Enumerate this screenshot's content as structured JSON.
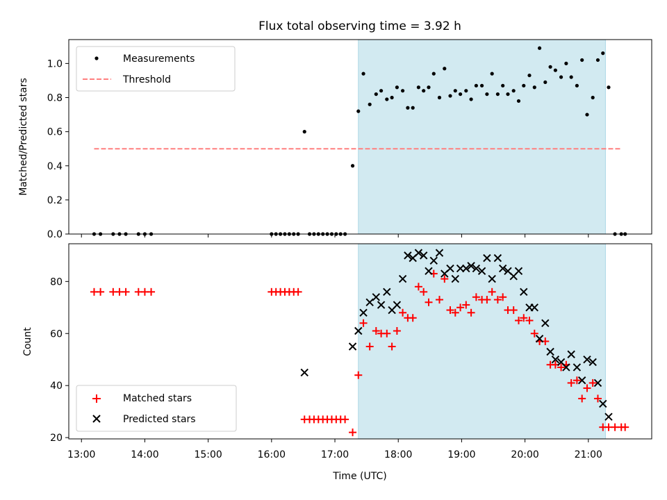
{
  "figure": {
    "title": "Flux total observing time = 3.92 h",
    "xlabel": "Time (UTC)"
  },
  "colors": {
    "shade": "#add8e6",
    "matched": "#ff0000",
    "predicted": "#000000",
    "threshold": "#ff7f7f",
    "measurement": "#000000"
  },
  "chart_data": [
    {
      "type": "scatter",
      "title": "Flux total observing time = 3.92 h",
      "xlabel": "",
      "ylabel": "Matched/Predicted stars",
      "x_unit": "hours UTC",
      "xlim": [
        12.8,
        22.0
      ],
      "ylim": [
        0,
        1.14
      ],
      "yticks": [
        0.0,
        0.2,
        0.4,
        0.6,
        0.8,
        1.0
      ],
      "ytick_labels": [
        "0.0",
        "0.2",
        "0.4",
        "0.6",
        "0.8",
        "1.0"
      ],
      "shaded_interval": [
        17.37,
        21.27
      ],
      "legend": {
        "placement": "upper left",
        "entries": [
          "Measurements",
          "Threshold"
        ]
      },
      "series": [
        {
          "name": "Measurements",
          "marker": "dot",
          "x": [
            13.2,
            13.3,
            13.5,
            13.6,
            13.7,
            13.9,
            14.0,
            14.1,
            16.0,
            16.07,
            16.14,
            16.21,
            16.28,
            16.35,
            16.42,
            16.52,
            16.6,
            16.67,
            16.74,
            16.81,
            16.88,
            16.95,
            17.02,
            17.09,
            17.16,
            17.28,
            17.37,
            17.45,
            17.55,
            17.65,
            17.73,
            17.82,
            17.9,
            17.98,
            18.07,
            18.15,
            18.23,
            18.32,
            18.4,
            18.48,
            18.56,
            18.65,
            18.73,
            18.82,
            18.9,
            18.98,
            19.07,
            19.15,
            19.23,
            19.32,
            19.4,
            19.48,
            19.57,
            19.65,
            19.73,
            19.82,
            19.9,
            19.98,
            20.07,
            20.15,
            20.23,
            20.32,
            20.4,
            20.48,
            20.57,
            20.65,
            20.73,
            20.82,
            20.9,
            20.98,
            21.07,
            21.15,
            21.23,
            21.32,
            21.42,
            21.52,
            21.58
          ],
          "y": [
            0,
            0,
            0,
            0,
            0,
            0,
            0,
            0,
            0,
            0,
            0,
            0,
            0,
            0,
            0,
            0.6,
            0,
            0,
            0,
            0,
            0,
            0,
            0,
            0,
            0,
            0.4,
            0.72,
            0.94,
            0.76,
            0.82,
            0.84,
            0.79,
            0.8,
            0.86,
            0.84,
            0.74,
            0.74,
            0.86,
            0.84,
            0.86,
            0.94,
            0.8,
            0.97,
            0.81,
            0.84,
            0.82,
            0.84,
            0.79,
            0.87,
            0.87,
            0.82,
            0.94,
            0.82,
            0.87,
            0.82,
            0.84,
            0.78,
            0.87,
            0.93,
            0.86,
            1.09,
            0.89,
            0.98,
            0.96,
            0.92,
            1.0,
            0.92,
            0.87,
            1.02,
            0.7,
            0.8,
            1.02,
            1.06,
            0.86,
            0,
            0,
            0
          ]
        },
        {
          "name": "Threshold",
          "style": "dashed line",
          "x": [
            13.2,
            21.52
          ],
          "y": [
            0.5,
            0.5
          ]
        }
      ]
    },
    {
      "type": "scatter",
      "xlabel": "Time (UTC)",
      "ylabel": "Count",
      "x_unit": "hours UTC",
      "xlim": [
        12.8,
        22.0
      ],
      "ylim": [
        19.5,
        94.5
      ],
      "yticks": [
        20,
        40,
        60,
        80
      ],
      "xticks": [
        13,
        14,
        15,
        16,
        17,
        18,
        19,
        20,
        21
      ],
      "xtick_labels": [
        "13:00",
        "14:00",
        "15:00",
        "16:00",
        "17:00",
        "18:00",
        "19:00",
        "20:00",
        "21:00"
      ],
      "shaded_interval": [
        17.37,
        21.27
      ],
      "legend": {
        "placement": "lower left",
        "entries": [
          "Matched stars",
          "Predicted stars"
        ]
      },
      "series": [
        {
          "name": "Matched stars",
          "marker": "plus",
          "x": [
            13.2,
            13.3,
            13.5,
            13.6,
            13.7,
            13.9,
            14.0,
            14.1,
            16.0,
            16.07,
            16.14,
            16.21,
            16.28,
            16.35,
            16.42,
            16.52,
            16.6,
            16.67,
            16.74,
            16.81,
            16.88,
            16.95,
            17.02,
            17.09,
            17.16,
            17.28,
            17.37,
            17.45,
            17.55,
            17.65,
            17.73,
            17.82,
            17.9,
            17.98,
            18.07,
            18.15,
            18.23,
            18.32,
            18.4,
            18.48,
            18.56,
            18.65,
            18.73,
            18.82,
            18.9,
            18.98,
            19.07,
            19.15,
            19.23,
            19.32,
            19.4,
            19.48,
            19.57,
            19.65,
            19.73,
            19.82,
            19.9,
            19.98,
            20.07,
            20.15,
            20.23,
            20.32,
            20.4,
            20.48,
            20.57,
            20.65,
            20.73,
            20.82,
            20.9,
            20.98,
            21.07,
            21.15,
            21.23,
            21.32,
            21.42,
            21.52,
            21.58
          ],
          "y": [
            76,
            76,
            76,
            76,
            76,
            76,
            76,
            76,
            76,
            76,
            76,
            76,
            76,
            76,
            76,
            27,
            27,
            27,
            27,
            27,
            27,
            27,
            27,
            27,
            27,
            22,
            44,
            64,
            55,
            61,
            60,
            60,
            55,
            61,
            68,
            66,
            66,
            78,
            76,
            72,
            83,
            73,
            81,
            69,
            68,
            70,
            71,
            68,
            74,
            73,
            73,
            76,
            73,
            74,
            69,
            69,
            65,
            66,
            65,
            60,
            57,
            57,
            48,
            48,
            47,
            48,
            41,
            42,
            35,
            39,
            41,
            35,
            24,
            24,
            24,
            24,
            24
          ]
        },
        {
          "name": "Predicted stars",
          "marker": "x",
          "x": [
            17.28,
            17.37,
            17.45,
            17.55,
            17.65,
            17.73,
            17.82,
            17.9,
            17.98,
            18.07,
            18.15,
            18.23,
            18.32,
            18.4,
            18.48,
            18.56,
            18.65,
            18.73,
            18.82,
            18.9,
            18.98,
            19.07,
            19.15,
            19.23,
            19.32,
            19.4,
            19.48,
            19.57,
            19.65,
            19.73,
            19.82,
            19.9,
            19.98,
            20.07,
            20.15,
            20.23,
            20.32,
            20.4,
            20.48,
            20.57,
            20.65,
            20.73,
            20.82,
            20.9,
            20.98,
            21.07,
            21.15,
            21.23,
            21.32,
            16.52
          ],
          "y": [
            55,
            61,
            68,
            72,
            74,
            71,
            76,
            69,
            71,
            81,
            90,
            89,
            91,
            90,
            84,
            88,
            91,
            83,
            85,
            81,
            85,
            85,
            86,
            85,
            84,
            89,
            81,
            89,
            85,
            84,
            82,
            84,
            76,
            70,
            70,
            58,
            64,
            53,
            50,
            49,
            47,
            52,
            47,
            42,
            50,
            49,
            41,
            33,
            28,
            45
          ]
        }
      ]
    }
  ]
}
